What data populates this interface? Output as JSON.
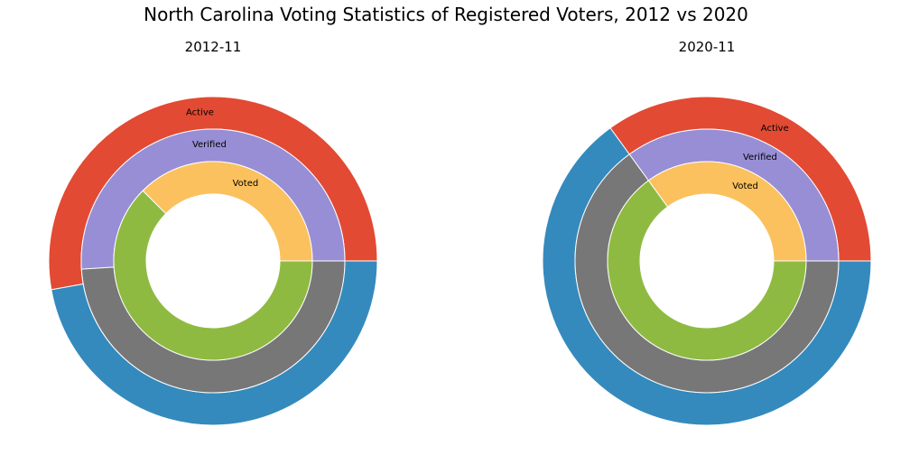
{
  "chart_data": {
    "title": "North Carolina Voting Statistics of Registered Voters, 2012 vs 2020",
    "type": "pie",
    "colors": {
      "active": "#E24A33",
      "inactive": "#348ABD",
      "verified": "#988ED5",
      "unverified": "#777777",
      "voted": "#FBC15E",
      "not_voted": "#8EBA42"
    },
    "rings": [
      "Active",
      "Verified",
      "Voted"
    ],
    "charts": [
      {
        "title": "2012-11",
        "series": [
          {
            "name": "Active",
            "values": [
              0.528,
              0.472
            ]
          },
          {
            "name": "Verified",
            "values": [
              0.51,
              0.49
            ]
          },
          {
            "name": "Voted",
            "values": [
              0.375,
              0.625
            ]
          }
        ]
      },
      {
        "title": "2020-11",
        "series": [
          {
            "name": "Active",
            "values": [
              0.35,
              0.65
            ]
          },
          {
            "name": "Verified",
            "values": [
              0.35,
              0.65
            ]
          },
          {
            "name": "Voted",
            "values": [
              0.35,
              0.65
            ]
          }
        ]
      }
    ]
  }
}
